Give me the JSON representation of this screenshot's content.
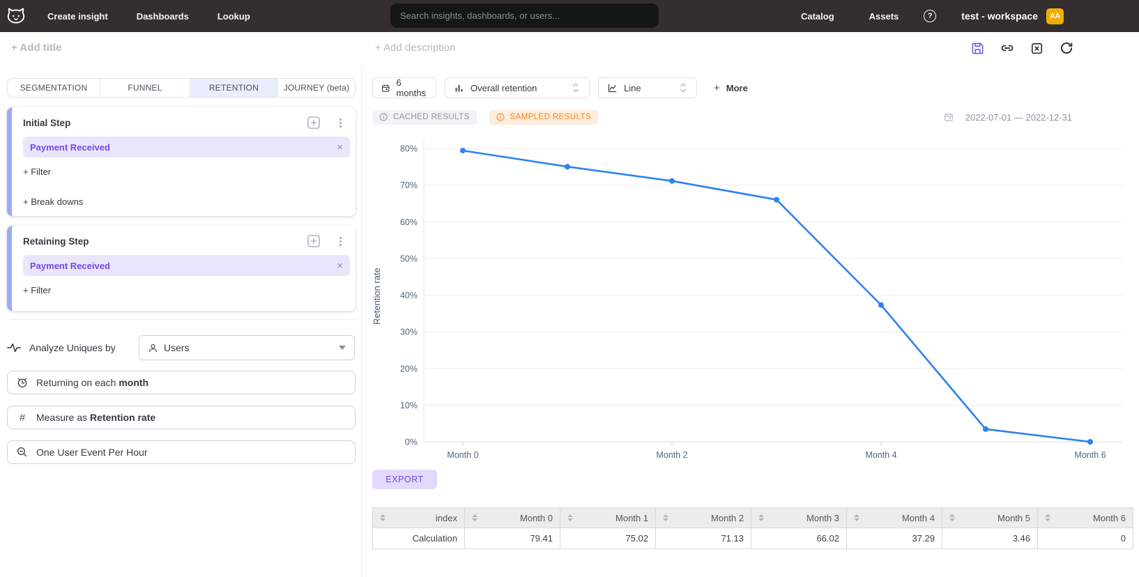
{
  "nav": {
    "links": [
      {
        "label": "Create insight"
      },
      {
        "label": "Dashboards"
      },
      {
        "label": "Lookup"
      }
    ],
    "search": {
      "placeholder": "Search insights, dashboards, or users..."
    },
    "right_links": [
      {
        "label": "Catalog"
      },
      {
        "label": "Assets"
      }
    ],
    "workspace_name": "test - workspace",
    "avatar_initials": "AA"
  },
  "header": {
    "add_title": "+ Add title",
    "add_description": "+ Add description"
  },
  "tabs": [
    {
      "label": "SEGMENTATION",
      "active": false
    },
    {
      "label": "FUNNEL",
      "active": false
    },
    {
      "label": "RETENTION",
      "active": true
    },
    {
      "label": "JOURNEY (beta)",
      "active": false
    }
  ],
  "steps": {
    "initial": {
      "title": "Initial Step",
      "event": "Payment Received",
      "filter_label": "+ Filter",
      "breakdown_label": "+ Break downs"
    },
    "retaining": {
      "title": "Retaining Step",
      "event": "Payment Received",
      "filter_label": "+ Filter"
    }
  },
  "controls": {
    "analyze_label": "Analyze Uniques by",
    "analyze_value": "Users",
    "returning_prefix": "Returning on each ",
    "returning_value": "month",
    "measure_prefix": "Measure as ",
    "measure_value": "Retention rate",
    "aggregation_label": "One User Event Per Hour"
  },
  "toolbar": {
    "time_window": "6 months",
    "metric": "Overall retention",
    "chart_type": "Line",
    "plus": "+",
    "more_label": "More"
  },
  "status": {
    "cached_label": "CACHED RESULTS",
    "sampled_label": "SAMPLED RESULTS",
    "date_range": "2022-07-01 — 2022-12-31"
  },
  "export_label": "EXPORT",
  "chart_data": {
    "type": "line",
    "x": [
      "Month 0",
      "Month 1",
      "Month 2",
      "Month 3",
      "Month 4",
      "Month 5",
      "Month 6"
    ],
    "series": [
      {
        "name": "Calculation",
        "values": [
          79.41,
          75.02,
          71.13,
          66.02,
          37.29,
          3.46,
          0
        ]
      }
    ],
    "title": "",
    "xlabel": "",
    "ylabel": "Retention rate",
    "ylim": [
      0,
      80
    ],
    "ytick_step": 10,
    "ytick_suffix": "%",
    "x_labels_shown": [
      "Month 0",
      "Month 2",
      "Month 4",
      "Month 6"
    ],
    "grid": true,
    "legend": false,
    "line_color": "#2f81ed"
  },
  "table": {
    "columns": [
      "index",
      "Month 0",
      "Month 1",
      "Month 2",
      "Month 3",
      "Month 4",
      "Month 5",
      "Month 6"
    ],
    "rows": [
      [
        "Calculation",
        "79.41",
        "75.02",
        "71.13",
        "66.02",
        "37.29",
        "3.46",
        "0"
      ]
    ]
  },
  "icons": {
    "kebab": "⋮",
    "close": "×",
    "help": "?",
    "hash": "#"
  },
  "colors": {
    "accent_purple": "#7048e8",
    "chip_bg": "#e9e6fc",
    "line_blue": "#2f81ed",
    "sampled_orange": "#f7851e",
    "avatar_amber": "#eeb004",
    "nav_bg": "#342e2e",
    "step_accent": "#9daaf2"
  }
}
